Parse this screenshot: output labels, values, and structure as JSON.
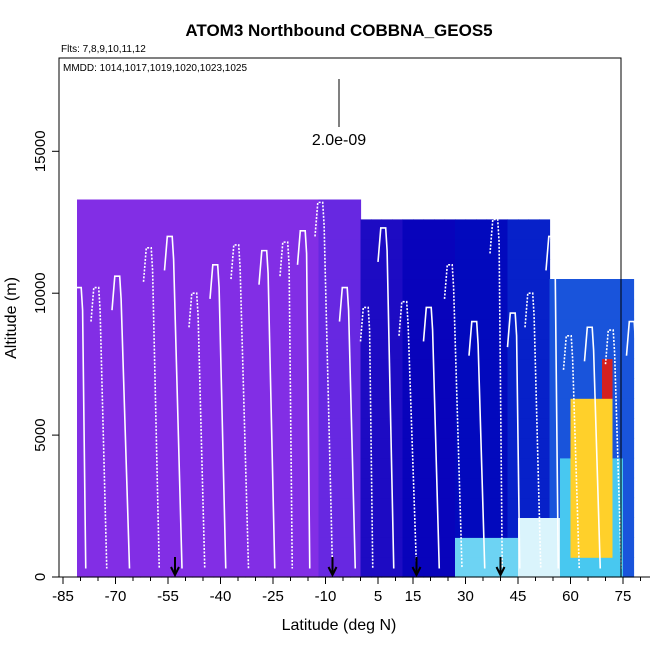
{
  "chart_data": {
    "type": "heatmap",
    "title": "ATOM3 Northbound COBBNA_GEOS5",
    "subtitle_flights": "Flts: 7,8,9,10,11,12",
    "subtitle_dates": "MMDD: 1014,1017,1019,1020,1023,1025",
    "xlabel": "Latitude (deg N)",
    "ylabel": "Altitude (m)",
    "xlim": [
      -85,
      85
    ],
    "ylim": [
      0,
      18000
    ],
    "x_ticks": [
      -85,
      -70,
      -55,
      -40,
      -25,
      -10,
      5,
      15,
      30,
      45,
      60,
      75
    ],
    "x_tick_labels": [
      "-85",
      "-70",
      "-55",
      "-40",
      "-25",
      "-10",
      "5",
      "15",
      "30",
      "45",
      "60",
      "75"
    ],
    "y_ticks": [
      0,
      5000,
      10000,
      15000
    ],
    "y_tick_labels": [
      "0",
      "5000",
      "10000",
      "15000"
    ],
    "scale_label": "2.0e-09",
    "colormap": [
      "#8a2be2",
      "#7a30e8",
      "#5a22dd",
      "#2a10c8",
      "#0000b8",
      "#0a2fd0",
      "#2878e6",
      "#48c8f0",
      "#ffffff",
      "#ffd02a",
      "#d42020"
    ],
    "background_value": 0.05,
    "regions": [
      {
        "lat": [
          -85,
          -11
        ],
        "alt": [
          0,
          13400
        ],
        "value": 0.05
      },
      {
        "lat": [
          -11,
          1
        ],
        "alt": [
          0,
          13000
        ],
        "value": 0.16
      },
      {
        "lat": [
          1,
          11
        ],
        "alt": [
          0,
          12900
        ],
        "value": 0.33
      },
      {
        "lat": [
          11,
          26
        ],
        "alt": [
          0,
          12900
        ],
        "value": 0.38
      },
      {
        "lat": [
          26,
          41
        ],
        "alt": [
          0,
          12900
        ],
        "value": 0.42
      },
      {
        "lat": [
          41,
          55
        ],
        "alt": [
          0,
          12300
        ],
        "value": 0.47
      },
      {
        "lat": [
          55,
          79
        ],
        "alt": [
          0,
          10400
        ],
        "value": 0.55
      },
      {
        "lat": [
          27,
          54
        ],
        "alt": [
          0,
          1400
        ],
        "value": 0.72
      },
      {
        "lat": [
          45,
          70
        ],
        "alt": [
          0,
          1900
        ],
        "value": 0.78
      },
      {
        "lat": [
          57,
          75
        ],
        "alt": [
          0,
          4500
        ],
        "value": 0.7
      },
      {
        "lat": [
          60,
          73
        ],
        "alt": [
          1000,
          6500
        ],
        "value": 0.9
      },
      {
        "lat": [
          68,
          73
        ],
        "alt": [
          6500,
          8000
        ],
        "value": 1.0
      }
    ],
    "flight_track_note": "vertical profiles shown as white line traces",
    "markers_latitude": [
      -53,
      -8,
      16,
      40
    ]
  }
}
